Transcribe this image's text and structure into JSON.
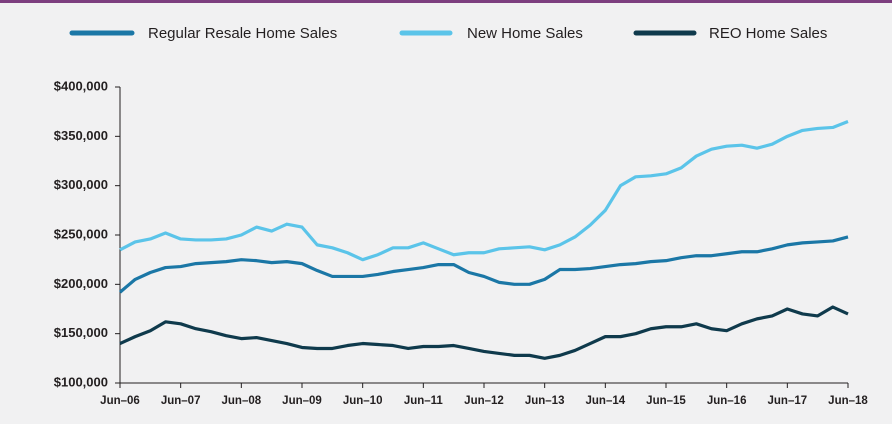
{
  "chart_data": {
    "type": "line",
    "categories": [
      "Jun–06",
      null,
      null,
      null,
      "Jun–07",
      null,
      null,
      null,
      "Jun–08",
      null,
      null,
      null,
      "Jun–09",
      null,
      null,
      null,
      "Jun–10",
      null,
      null,
      null,
      "Jun–11",
      null,
      null,
      null,
      "Jun–12",
      null,
      null,
      null,
      "Jun–13",
      null,
      null,
      null,
      "Jun–14",
      null,
      null,
      null,
      "Jun–15",
      null,
      null,
      null,
      "Jun–16",
      null,
      null,
      null,
      "Jun–17",
      null,
      null,
      null,
      "Jun–18"
    ],
    "series": [
      {
        "name": "Regular Resale Home Sales",
        "color": "#1b77a6",
        "values": [
          192000,
          205000,
          212000,
          217000,
          218000,
          221000,
          222000,
          223000,
          225000,
          224000,
          222000,
          223000,
          221000,
          214000,
          208000,
          208000,
          208000,
          210000,
          213000,
          215000,
          217000,
          220000,
          220000,
          212000,
          208000,
          202000,
          200000,
          200000,
          205000,
          215000,
          215000,
          216000,
          218000,
          220000,
          221000,
          223000,
          224000,
          227000,
          229000,
          229000,
          231000,
          233000,
          233000,
          236000,
          240000,
          242000,
          243000,
          244000,
          248000
        ]
      },
      {
        "name": "New Home Sales",
        "color": "#5bc4e9",
        "values": [
          235000,
          243000,
          246000,
          252000,
          246000,
          245000,
          245000,
          246000,
          250000,
          258000,
          254000,
          261000,
          258000,
          240000,
          237000,
          232000,
          225000,
          230000,
          237000,
          237000,
          242000,
          236000,
          230000,
          232000,
          232000,
          236000,
          237000,
          238000,
          235000,
          240000,
          248000,
          260000,
          275000,
          300000,
          309000,
          310000,
          312000,
          318000,
          330000,
          337000,
          340000,
          341000,
          338000,
          342000,
          350000,
          356000,
          358000,
          359000,
          365000
        ]
      },
      {
        "name": "REO Home Sales",
        "color": "#0f3a4c",
        "values": [
          140000,
          147000,
          153000,
          162000,
          160000,
          155000,
          152000,
          148000,
          145000,
          146000,
          143000,
          140000,
          136000,
          135000,
          135000,
          138000,
          140000,
          139000,
          138000,
          135000,
          137000,
          137000,
          138000,
          135000,
          132000,
          130000,
          128000,
          128000,
          125000,
          128000,
          133000,
          140000,
          147000,
          147000,
          150000,
          155000,
          157000,
          157000,
          160000,
          155000,
          153000,
          160000,
          165000,
          168000,
          175000,
          170000,
          168000,
          177000,
          170000
        ]
      }
    ],
    "ylim": [
      100000,
      400000
    ],
    "yticks": [
      {
        "value": 100000,
        "label": "$100,000"
      },
      {
        "value": 150000,
        "label": "$150,000"
      },
      {
        "value": 200000,
        "label": "$200,000"
      },
      {
        "value": 250000,
        "label": "$250,000"
      },
      {
        "value": 300000,
        "label": "$300,000"
      },
      {
        "value": 350000,
        "label": "$350,000"
      },
      {
        "value": 400000,
        "label": "$400,000"
      }
    ],
    "grid": false,
    "legend": "top"
  }
}
